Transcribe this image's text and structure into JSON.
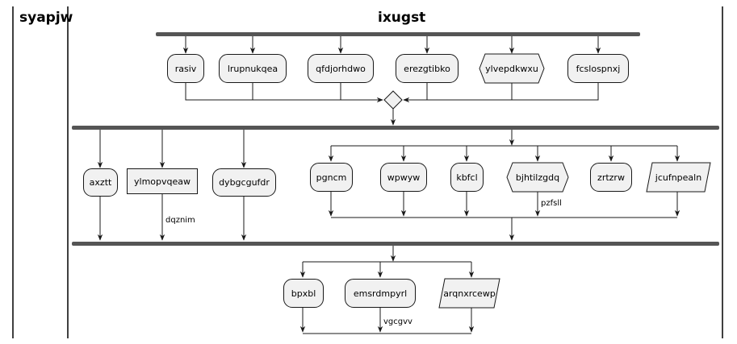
{
  "swimlanes": [
    {
      "id": "lane1",
      "title": "syapjw"
    },
    {
      "id": "lane2",
      "title": "ixugst"
    }
  ],
  "stage1": {
    "activities": [
      "rasiv",
      "lrupnukqea",
      "qfdjorhdwo",
      "erezgtibko",
      "ylvepdkwxu",
      "fcslospnxj"
    ]
  },
  "stage2": {
    "activities": [
      "axztt",
      "ylmopvqeaw",
      "dybgcgufdr"
    ],
    "edge_label": "dqznim",
    "inner": {
      "activities": [
        "pgncm",
        "wpwyw",
        "kbfcl",
        "bjhtilzgdq",
        "zrtzrw",
        "jcufnpealn"
      ],
      "edge_label": "pzfsll"
    }
  },
  "stage3": {
    "activities": [
      "bpxbl",
      "emsrdmpyrl",
      "arqnxrcewp"
    ],
    "edge_label": "vgcgvv"
  },
  "colors": {
    "activity_fill": "#f1f1f1",
    "stroke": "#181818",
    "fork_bar": "#555555"
  }
}
